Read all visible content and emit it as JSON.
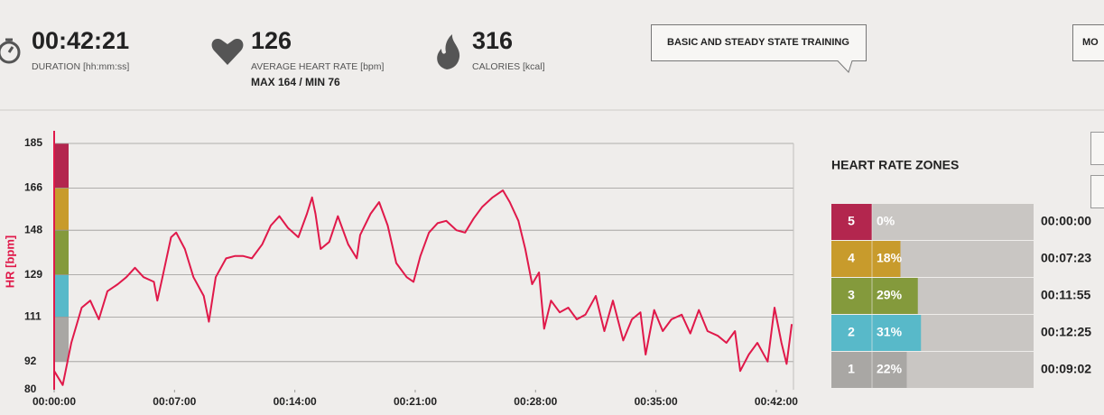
{
  "header": {
    "duration": {
      "value": "00:42:21",
      "label": "DURATION [hh:mm:ss]"
    },
    "heart_rate": {
      "value": "126",
      "label": "AVERAGE HEART RATE [bpm]",
      "max_min": "MAX 164  /  MIN 76"
    },
    "calories": {
      "value": "316",
      "label": "CALORIES [kcal]"
    },
    "training_button": "BASIC AND STEADY STATE TRAINING",
    "more_button": "MO"
  },
  "chart_data": {
    "type": "line",
    "y_label": "HR [bpm]",
    "x": [
      0,
      0.5,
      1,
      1.6,
      2.1,
      2.6,
      3.1,
      3.7,
      4.2,
      4.7,
      5.2,
      5.8,
      6.0,
      6.3,
      6.8,
      7.1,
      7.6,
      8.1,
      8.7,
      9.0,
      9.4,
      10.0,
      10.5,
      11.0,
      11.5,
      12.1,
      12.6,
      13.1,
      13.6,
      14.2,
      14.7,
      15.0,
      15.2,
      15.5,
      16.0,
      16.5,
      17.1,
      17.6,
      17.8,
      18.4,
      18.9,
      19.4,
      19.9,
      20.5,
      20.9,
      21.3,
      21.8,
      22.3,
      22.8,
      23.4,
      23.9,
      24.4,
      24.9,
      25.5,
      26.1,
      26.5,
      27.0,
      27.4,
      27.8,
      28.2,
      28.5,
      28.9,
      29.4,
      29.9,
      30.4,
      30.9,
      31.5,
      32.0,
      32.5,
      33.1,
      33.6,
      34.1,
      34.4,
      34.9,
      35.4,
      35.9,
      36.5,
      37.0,
      37.5,
      38.0,
      38.6,
      39.1,
      39.6,
      39.9,
      40.4,
      40.9,
      41.5,
      41.9,
      42.3,
      42.6,
      42.9
    ],
    "series": [
      {
        "name": "HR",
        "color": "#e0194a",
        "values": [
          88,
          82,
          100,
          115,
          118,
          110,
          122,
          125,
          128,
          132,
          128,
          126,
          118,
          128,
          145,
          147,
          140,
          128,
          120,
          109,
          128,
          136,
          137,
          137,
          136,
          142,
          150,
          154,
          149,
          145,
          155,
          162,
          155,
          140,
          143,
          154,
          142,
          136,
          146,
          155,
          160,
          150,
          134,
          128,
          126,
          137,
          147,
          151,
          152,
          148,
          147,
          153,
          158,
          162,
          165,
          160,
          152,
          140,
          125,
          130,
          106,
          118,
          113,
          115,
          110,
          112,
          120,
          105,
          118,
          101,
          110,
          113,
          95,
          114,
          105,
          110,
          112,
          104,
          114,
          105,
          103,
          100,
          105,
          88,
          95,
          100,
          92,
          115,
          100,
          91,
          108
        ]
      }
    ],
    "xlim": [
      0,
      43
    ],
    "ylim": [
      80,
      185
    ],
    "xticks": [
      {
        "value": 0,
        "label": "00:00:00"
      },
      {
        "value": 7,
        "label": "00:07:00"
      },
      {
        "value": 14,
        "label": "00:14:00"
      },
      {
        "value": 21,
        "label": "00:21:00"
      },
      {
        "value": 28,
        "label": "00:28:00"
      },
      {
        "value": 35,
        "label": "00:35:00"
      },
      {
        "value": 42,
        "label": "00:42:00"
      }
    ],
    "yticks": [
      80,
      92,
      111,
      129,
      148,
      166,
      185
    ],
    "grid": true
  },
  "zones": {
    "title": "HEART RATE ZONES",
    "rows": [
      {
        "zone": "5",
        "percent": 0,
        "percent_label": "0%",
        "time": "00:00:00",
        "color": "#b3264e"
      },
      {
        "zone": "4",
        "percent": 18,
        "percent_label": "18%",
        "time": "00:07:23",
        "color": "#c89b2c"
      },
      {
        "zone": "3",
        "percent": 29,
        "percent_label": "29%",
        "time": "00:11:55",
        "color": "#849a3c"
      },
      {
        "zone": "2",
        "percent": 31,
        "percent_label": "31%",
        "time": "00:12:25",
        "color": "#58b9c9"
      },
      {
        "zone": "1",
        "percent": 22,
        "percent_label": "22%",
        "time": "00:09:02",
        "color": "#a9a7a4"
      }
    ]
  }
}
